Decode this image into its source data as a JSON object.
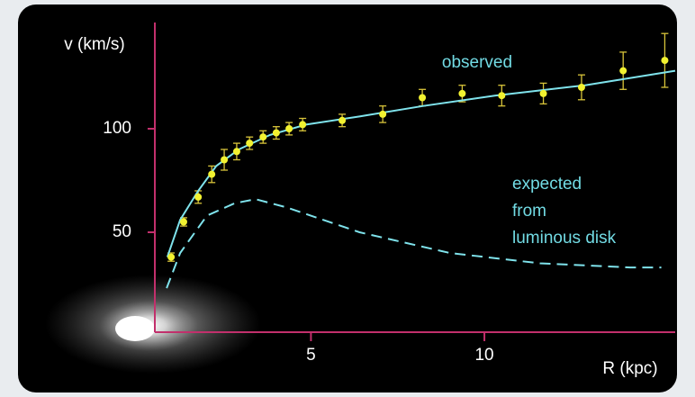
{
  "chart_data": {
    "type": "scatter",
    "y_label": "v (km/s)",
    "x_label": "R (kpc)",
    "xlim": [
      0.5,
      15.5
    ],
    "ylim": [
      0,
      150
    ],
    "xticks": [
      5,
      10
    ],
    "yticks": [
      50,
      100
    ],
    "axis_color": "#c2306c",
    "series": [
      {
        "name": "observed",
        "style": "points",
        "color": "#f2f230",
        "error_color": "#d8c43a",
        "x": [
          0.97,
          1.33,
          1.75,
          2.14,
          2.5,
          2.86,
          3.23,
          3.62,
          4.0,
          4.37,
          4.76,
          5.9,
          7.07,
          8.21,
          9.36,
          10.5,
          11.7,
          12.8,
          14.0,
          15.2
        ],
        "values": [
          38,
          55,
          67,
          78,
          85,
          89,
          93,
          96,
          98,
          100,
          102,
          104,
          107,
          115,
          117,
          116,
          117,
          120,
          128,
          133
        ],
        "errors": [
          2,
          2,
          3,
          4,
          5,
          4,
          3,
          3,
          3,
          3,
          3,
          3,
          4,
          4,
          4,
          5,
          5,
          6,
          9,
          13
        ]
      },
      {
        "style": "line",
        "color": "#7fe3ec",
        "x": [
          0.86,
          1.23,
          1.75,
          2.27,
          2.92,
          3.82,
          4.86,
          6.42,
          8.24,
          10.3,
          12.9,
          15.5
        ],
        "values": [
          38,
          56,
          70,
          82,
          90,
          97,
          102,
          106,
          111,
          116,
          121,
          128
        ]
      },
      {
        "style": "dashed",
        "color": "#7fe3ec",
        "x": [
          0.84,
          1.23,
          2.0,
          2.8,
          3.4,
          4.3,
          6.4,
          9.0,
          11.6,
          14.2,
          15.1
        ],
        "values": [
          23,
          40,
          58,
          64,
          66,
          62,
          50,
          40,
          35,
          33,
          33
        ]
      }
    ],
    "annotations": [
      "observed",
      "expected",
      "from",
      "luminous disk"
    ]
  }
}
